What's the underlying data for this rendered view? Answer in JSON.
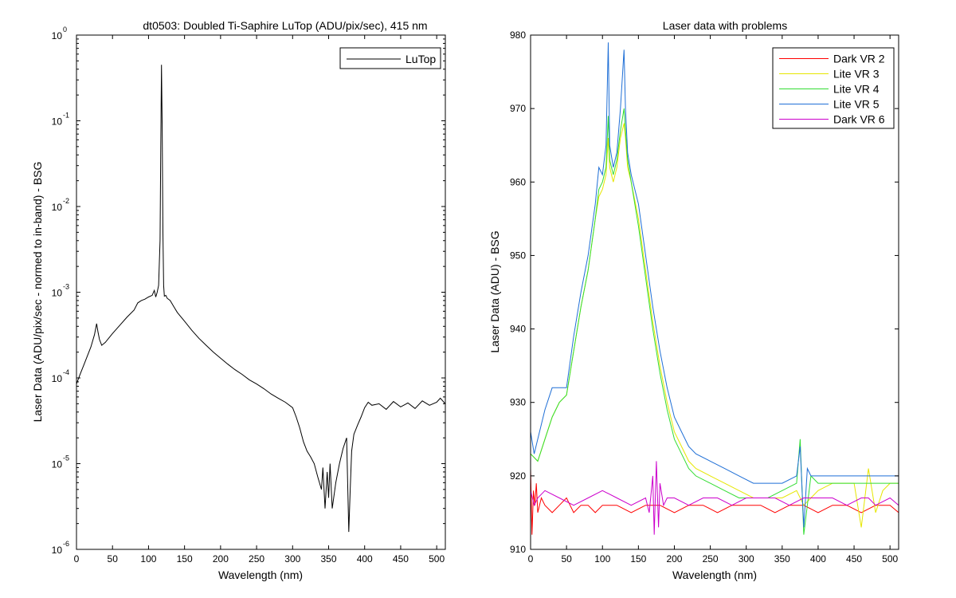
{
  "chart_data": [
    {
      "type": "line",
      "title": "dt0503: Doubled Ti-Saphire LuTop (ADU/pix/sec), 415 nm",
      "xlabel": "Wavelength (nm)",
      "ylabel": "Laser Data (ADU/pix/sec - normed to in-band) - BSG",
      "xlim": [
        0,
        512
      ],
      "ylim": [
        1e-06,
        1
      ],
      "yscale": "log",
      "grid": false,
      "legend_placement": "top-right",
      "x_ticks": [
        "0",
        "50",
        "100",
        "150",
        "200",
        "250",
        "300",
        "350",
        "400",
        "450",
        "500"
      ],
      "y_ticks": [
        {
          "base": "10",
          "exp": "0"
        },
        {
          "base": "10",
          "exp": "-1"
        },
        {
          "base": "10",
          "exp": "-2"
        },
        {
          "base": "10",
          "exp": "-3"
        },
        {
          "base": "10",
          "exp": "-4"
        },
        {
          "base": "10",
          "exp": "-5"
        },
        {
          "base": "10",
          "exp": "-6"
        }
      ],
      "series": [
        {
          "name": "LuTop",
          "color": "#000000",
          "x": [
            0,
            5,
            10,
            15,
            20,
            25,
            28,
            30,
            32,
            35,
            40,
            50,
            60,
            70,
            80,
            85,
            90,
            95,
            100,
            105,
            108,
            110,
            112,
            114,
            116,
            117,
            118,
            119,
            120,
            121,
            122,
            124,
            126,
            130,
            135,
            140,
            150,
            160,
            170,
            180,
            190,
            200,
            210,
            220,
            230,
            240,
            250,
            260,
            270,
            280,
            290,
            300,
            305,
            310,
            315,
            320,
            325,
            330,
            335,
            340,
            342,
            345,
            348,
            350,
            352,
            355,
            360,
            365,
            370,
            375,
            378,
            380,
            382,
            385,
            390,
            395,
            400,
            405,
            410,
            420,
            430,
            440,
            450,
            460,
            470,
            480,
            490,
            500,
            505,
            512
          ],
          "y": [
            8.5e-05,
            0.00011,
            0.00014,
            0.00018,
            0.00023,
            0.00032,
            0.00043,
            0.00034,
            0.00028,
            0.00024,
            0.00026,
            0.00033,
            0.00041,
            0.00051,
            0.00062,
            0.00075,
            0.0008,
            0.00083,
            0.00088,
            0.00092,
            0.00105,
            0.00088,
            0.001,
            0.0012,
            0.004,
            0.05,
            0.45,
            0.08,
            0.005,
            0.0012,
            0.0009,
            0.00092,
            0.00085,
            0.0008,
            0.00068,
            0.00058,
            0.00046,
            0.00036,
            0.00029,
            0.00024,
            0.0002,
            0.00017,
            0.000145,
            0.000125,
            0.00011,
            9.5e-05,
            8.5e-05,
            7.5e-05,
            6.5e-05,
            5.8e-05,
            5.2e-05,
            4.5e-05,
            3.5e-05,
            2.6e-05,
            1.8e-05,
            1.4e-05,
            1.2e-05,
            1e-05,
            7e-06,
            5e-06,
            9e-06,
            3e-06,
            8e-06,
            4e-06,
            1e-05,
            3e-06,
            6e-06,
            1e-05,
            1.5e-05,
            2e-05,
            1.6e-06,
            5e-06,
            1.4e-05,
            2.2e-05,
            2.8e-05,
            3.5e-05,
            4.5e-05,
            5.2e-05,
            4.8e-05,
            5e-05,
            4.3e-05,
            5.3e-05,
            4.6e-05,
            5.1e-05,
            4.4e-05,
            5.4e-05,
            4.8e-05,
            5.2e-05,
            5.8e-05,
            5e-05
          ]
        }
      ]
    },
    {
      "type": "line",
      "title": "Laser data with problems",
      "xlabel": "Wavelength (nm)",
      "ylabel": "Laser Data (ADU) - BSG",
      "xlim": [
        0,
        512
      ],
      "ylim": [
        910,
        980
      ],
      "yscale": "linear",
      "grid": false,
      "legend_placement": "top-right",
      "x_ticks": [
        "0",
        "50",
        "100",
        "150",
        "200",
        "250",
        "300",
        "350",
        "400",
        "450",
        "500"
      ],
      "y_ticks": [
        "910",
        "920",
        "930",
        "940",
        "950",
        "960",
        "970",
        "980"
      ],
      "series": [
        {
          "name": "Dark VR 2",
          "color": "#ff0000",
          "x": [
            0,
            2,
            4,
            6,
            8,
            10,
            15,
            20,
            30,
            40,
            50,
            60,
            70,
            80,
            90,
            100,
            120,
            140,
            160,
            180,
            200,
            220,
            240,
            260,
            280,
            300,
            320,
            340,
            360,
            380,
            400,
            420,
            440,
            460,
            480,
            500,
            512
          ],
          "y": [
            921,
            912,
            918,
            916,
            919,
            915,
            917,
            916,
            915,
            916,
            917,
            915,
            916,
            916,
            915,
            916,
            916,
            915,
            916,
            916,
            915,
            916,
            916,
            915,
            916,
            916,
            916,
            915,
            916,
            916,
            915,
            916,
            916,
            915,
            916,
            916,
            915
          ]
        },
        {
          "name": "Lite VR 3",
          "color": "#e6e600",
          "x": [
            0,
            10,
            20,
            30,
            40,
            50,
            60,
            70,
            80,
            90,
            95,
            100,
            105,
            108,
            110,
            115,
            120,
            125,
            130,
            132,
            135,
            140,
            150,
            160,
            170,
            180,
            190,
            200,
            210,
            220,
            230,
            250,
            270,
            290,
            310,
            330,
            350,
            370,
            380,
            390,
            400,
            420,
            440,
            450,
            460,
            470,
            480,
            490,
            500,
            512
          ],
          "y": [
            923,
            922,
            925,
            928,
            930,
            931,
            937,
            943,
            948,
            955,
            958,
            959,
            961,
            966,
            962,
            960,
            962,
            966,
            968,
            966,
            962,
            960,
            955,
            948,
            941,
            935,
            930,
            926,
            924,
            922,
            921,
            920,
            919,
            918,
            917,
            917,
            917,
            918,
            916,
            917,
            918,
            919,
            919,
            919,
            913,
            921,
            915,
            918,
            919,
            919
          ]
        },
        {
          "name": "Lite VR 4",
          "color": "#33dd33",
          "x": [
            0,
            10,
            20,
            30,
            40,
            50,
            60,
            70,
            80,
            90,
            95,
            100,
            105,
            108,
            110,
            115,
            120,
            125,
            130,
            132,
            135,
            140,
            150,
            160,
            170,
            180,
            190,
            200,
            210,
            220,
            230,
            250,
            270,
            290,
            310,
            330,
            350,
            370,
            375,
            380,
            390,
            400,
            420,
            440,
            460,
            480,
            500,
            512
          ],
          "y": [
            923,
            922,
            925,
            928,
            930,
            931,
            937,
            943,
            948,
            955,
            959,
            960,
            962,
            969,
            963,
            961,
            963,
            967,
            970,
            967,
            963,
            960,
            954,
            947,
            940,
            934,
            929,
            925,
            923,
            921,
            920,
            919,
            918,
            917,
            917,
            917,
            918,
            919,
            925,
            912,
            920,
            919,
            919,
            919,
            919,
            919,
            919,
            919
          ]
        },
        {
          "name": "Lite VR 5",
          "color": "#1f6fd6",
          "x": [
            0,
            5,
            10,
            20,
            30,
            40,
            50,
            60,
            70,
            80,
            90,
            95,
            100,
            105,
            108,
            110,
            115,
            120,
            125,
            130,
            132,
            135,
            140,
            150,
            160,
            170,
            180,
            190,
            200,
            210,
            220,
            230,
            250,
            270,
            290,
            310,
            330,
            350,
            370,
            375,
            380,
            385,
            390,
            400,
            420,
            440,
            460,
            480,
            500,
            512
          ],
          "y": [
            926,
            923,
            925,
            929,
            932,
            932,
            932,
            939,
            945,
            950,
            957,
            962,
            961,
            965,
            979,
            965,
            962,
            964,
            970,
            978,
            970,
            964,
            961,
            957,
            950,
            943,
            937,
            932,
            928,
            926,
            924,
            923,
            922,
            921,
            920,
            919,
            919,
            919,
            920,
            924,
            913,
            921,
            920,
            920,
            920,
            920,
            920,
            920,
            920,
            920
          ]
        },
        {
          "name": "Dark VR 6",
          "color": "#cc00cc",
          "x": [
            0,
            5,
            10,
            20,
            40,
            60,
            80,
            100,
            120,
            140,
            160,
            165,
            170,
            172,
            175,
            178,
            180,
            185,
            190,
            200,
            220,
            240,
            260,
            280,
            300,
            320,
            340,
            360,
            380,
            400,
            420,
            440,
            460,
            470,
            480,
            500,
            512
          ],
          "y": [
            918,
            916,
            917,
            918,
            917,
            916,
            917,
            918,
            917,
            916,
            917,
            915,
            920,
            912,
            922,
            913,
            919,
            916,
            917,
            917,
            916,
            917,
            917,
            916,
            917,
            917,
            917,
            916,
            917,
            917,
            917,
            916,
            917,
            917,
            916,
            917,
            916
          ]
        }
      ]
    }
  ]
}
